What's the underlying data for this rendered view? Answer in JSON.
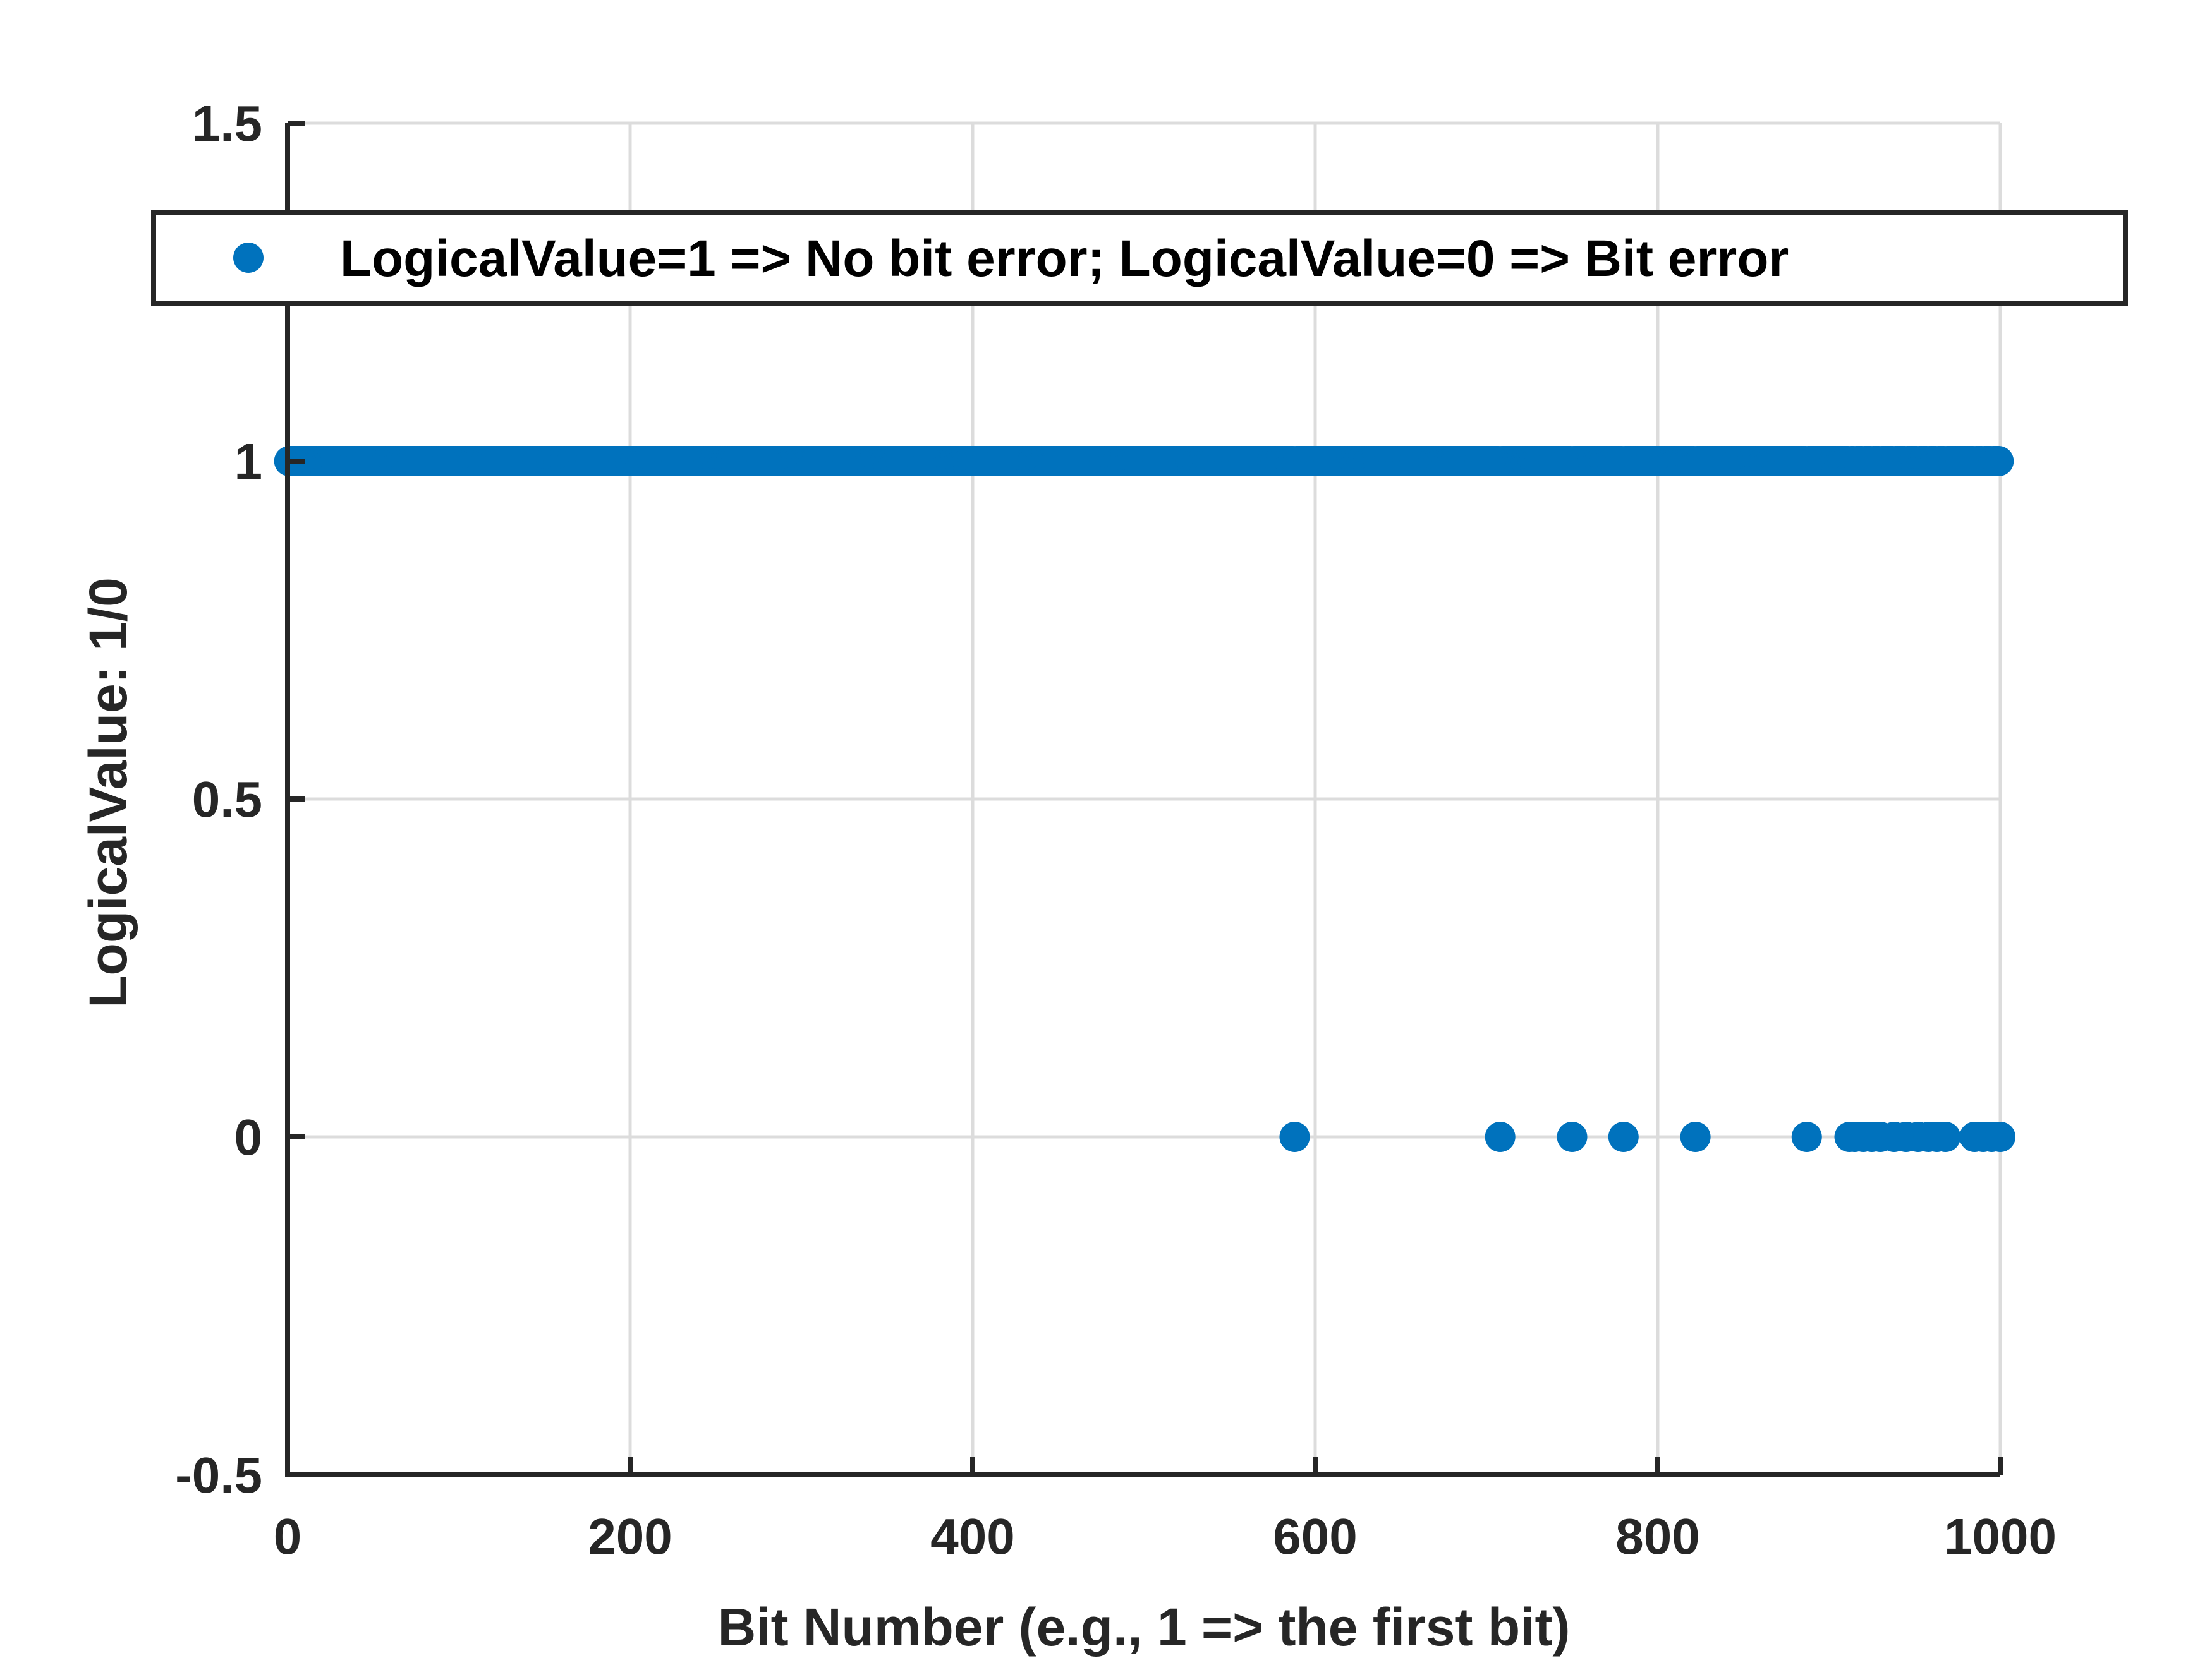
{
  "chart_data": {
    "type": "scatter",
    "title": "",
    "xlabel": "Bit Number (e.g., 1 => the first bit)",
    "ylabel": "LogicalValue: 1/0",
    "xlim": [
      0,
      1000
    ],
    "ylim": [
      -0.5,
      1.5
    ],
    "xticks": [
      0,
      200,
      400,
      600,
      800,
      1000
    ],
    "xtick_labels": [
      "0",
      "200",
      "400",
      "600",
      "800",
      "1000"
    ],
    "yticks": [
      -0.5,
      0,
      0.5,
      1,
      1.5
    ],
    "ytick_labels": [
      "-0.5",
      "0",
      "0.5",
      "1",
      "1.5"
    ],
    "grid": true,
    "legend_position": "top",
    "colors": {
      "series": "#0072BD",
      "axis": "#262626",
      "grid": "#dcdcdc"
    },
    "series": [
      {
        "name": "LogicalValue=1 => No bit error; LogicalValue=0 => Bit error",
        "x_range": [
          1,
          1000
        ],
        "default_y": 1,
        "y_zero_at_x": [
          588,
          708,
          750,
          780,
          822,
          887,
          912,
          915,
          920,
          925,
          930,
          938,
          945,
          952,
          958,
          963,
          968,
          985,
          990,
          995,
          1000
        ]
      }
    ]
  }
}
